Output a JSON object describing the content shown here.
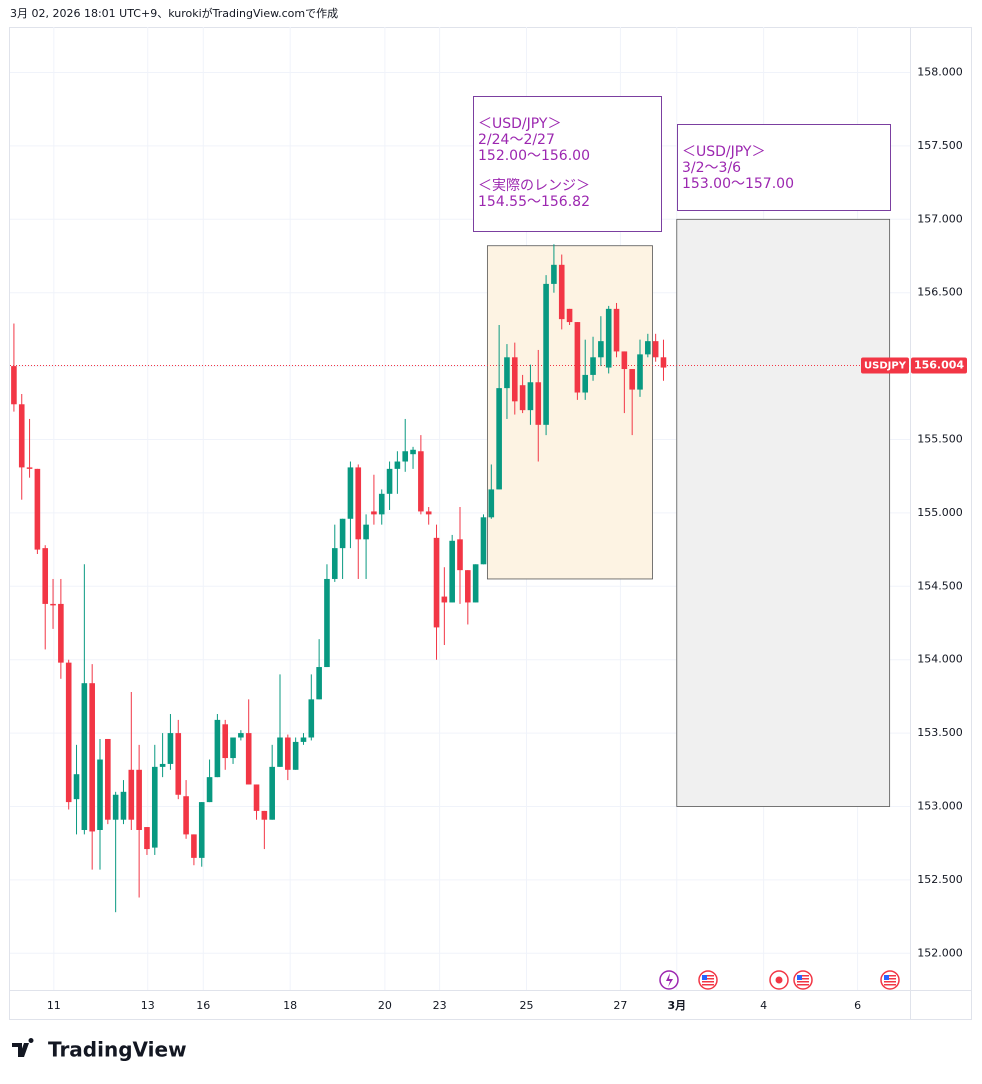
{
  "header": "3月 02, 2026 18:01 UTC+9、kurokiがTradingView.comで作成",
  "logo": "TradingView",
  "chart_data": {
    "type": "candlestick",
    "x": [
      0,
      1,
      2,
      3,
      4,
      5,
      6,
      7,
      8,
      9,
      10,
      11,
      12,
      13,
      14,
      15,
      16,
      17,
      18,
      19,
      20,
      21,
      22,
      23,
      24,
      25,
      26,
      27,
      28,
      29,
      30,
      31,
      32,
      33,
      34,
      35,
      36,
      37,
      38,
      39,
      40,
      41,
      42,
      43,
      44,
      45,
      46,
      47,
      48,
      49,
      50,
      51,
      52,
      53,
      54,
      55,
      56,
      57,
      58,
      59,
      60,
      61,
      62,
      63,
      64,
      65,
      66,
      67,
      68,
      69,
      70,
      71,
      72,
      73,
      74,
      75,
      76,
      77,
      78,
      79,
      80,
      81,
      82,
      83
    ],
    "open": [
      156.0,
      155.74,
      155.31,
      155.3,
      154.76,
      154.38,
      154.38,
      153.98,
      153.05,
      152.84,
      153.84,
      152.84,
      153.46,
      152.91,
      152.91,
      153.25,
      153.25,
      152.86,
      152.72,
      153.27,
      153.29,
      153.5,
      153.07,
      152.81,
      152.65,
      153.03,
      153.2,
      153.56,
      153.33,
      153.47,
      153.5,
      153.15,
      152.97,
      152.91,
      153.27,
      153.47,
      153.25,
      153.44,
      153.47,
      153.73,
      153.95,
      154.55,
      154.76,
      154.96,
      155.31,
      154.82,
      155.01,
      154.99,
      155.13,
      155.3,
      155.35,
      155.4,
      155.42,
      155.01,
      154.83,
      154.43,
      154.39,
      154.82,
      154.61,
      154.39,
      154.65,
      154.97,
      155.16,
      155.85,
      156.06,
      155.87,
      155.7,
      155.89,
      155.6,
      156.56,
      156.69,
      156.39,
      156.3,
      155.82,
      155.94,
      156.06,
      155.99,
      156.39,
      156.1,
      155.98,
      155.84,
      156.08,
      156.17,
      156.06
    ],
    "high": [
      156.29,
      155.81,
      155.64,
      155.3,
      154.78,
      154.55,
      154.55,
      154.0,
      153.42,
      154.65,
      153.97,
      153.46,
      153.46,
      153.1,
      153.18,
      153.78,
      153.42,
      152.86,
      153.42,
      153.5,
      153.63,
      153.59,
      153.18,
      152.81,
      153.03,
      153.32,
      153.63,
      153.59,
      153.47,
      153.52,
      153.73,
      153.15,
      152.97,
      153.42,
      153.9,
      153.49,
      153.47,
      153.5,
      153.9,
      154.14,
      154.65,
      154.92,
      154.96,
      155.35,
      155.33,
      154.99,
      155.26,
      155.16,
      155.35,
      155.42,
      155.64,
      155.45,
      155.53,
      155.04,
      154.92,
      154.63,
      154.85,
      155.04,
      154.61,
      154.65,
      154.99,
      155.33,
      156.28,
      156.15,
      156.16,
      155.94,
      156.01,
      156.11,
      156.62,
      156.83,
      156.76,
      156.39,
      156.3,
      156.18,
      156.2,
      156.34,
      156.41,
      156.43,
      156.1,
      155.98,
      156.18,
      156.22,
      156.22,
      156.18
    ],
    "low": [
      155.69,
      155.09,
      155.24,
      154.72,
      154.07,
      154.21,
      153.87,
      152.98,
      152.81,
      152.81,
      152.57,
      152.57,
      152.88,
      152.28,
      152.88,
      152.84,
      152.38,
      152.67,
      152.67,
      153.2,
      153.25,
      153.05,
      152.78,
      152.6,
      152.59,
      153.03,
      153.2,
      153.25,
      153.29,
      153.45,
      153.15,
      152.91,
      152.71,
      152.91,
      153.27,
      153.18,
      153.25,
      153.42,
      153.45,
      153.73,
      153.95,
      154.53,
      154.55,
      154.76,
      154.55,
      154.55,
      154.92,
      154.92,
      155.02,
      155.13,
      155.28,
      155.3,
      154.99,
      154.92,
      154.0,
      154.1,
      154.39,
      154.38,
      154.24,
      154.39,
      154.65,
      154.96,
      155.16,
      155.64,
      155.67,
      155.68,
      155.6,
      155.35,
      155.53,
      156.5,
      156.25,
      156.28,
      155.77,
      155.77,
      155.9,
      156.0,
      155.95,
      156.06,
      155.68,
      155.53,
      155.79,
      156.06,
      156.03,
      155.9
    ],
    "close": [
      155.74,
      155.31,
      155.3,
      154.75,
      154.38,
      154.37,
      153.98,
      153.03,
      153.22,
      153.84,
      152.83,
      153.32,
      152.91,
      153.08,
      153.1,
      152.91,
      152.84,
      152.71,
      153.27,
      153.29,
      153.5,
      153.08,
      152.81,
      152.65,
      153.03,
      153.2,
      153.59,
      153.33,
      153.47,
      153.5,
      153.15,
      152.97,
      152.91,
      153.27,
      153.47,
      153.25,
      153.44,
      153.47,
      153.73,
      153.95,
      154.55,
      154.76,
      154.96,
      155.31,
      154.82,
      154.92,
      154.99,
      155.13,
      155.3,
      155.35,
      155.42,
      155.43,
      155.01,
      154.99,
      154.22,
      154.39,
      154.81,
      154.61,
      154.39,
      154.65,
      154.97,
      155.16,
      155.85,
      156.06,
      155.76,
      155.7,
      155.89,
      155.6,
      156.56,
      156.69,
      156.32,
      156.3,
      155.82,
      155.94,
      156.06,
      156.17,
      156.39,
      156.1,
      155.98,
      155.84,
      156.08,
      156.17,
      156.06,
      155.99
    ],
    "up_color": "#089981",
    "down_color": "#f23645",
    "xlim": [
      -0.5,
      114.5
    ],
    "xticks": [
      {
        "value": 5.1,
        "label": "11"
      },
      {
        "value": 17.1,
        "label": "13"
      },
      {
        "value": 24.2,
        "label": "16"
      },
      {
        "value": 35.3,
        "label": "18"
      },
      {
        "value": 47.4,
        "label": "20"
      },
      {
        "value": 54.4,
        "label": "23"
      },
      {
        "value": 65.5,
        "label": "25"
      },
      {
        "value": 77.5,
        "label": "27"
      },
      {
        "value": 84.7,
        "label": "3月"
      },
      {
        "value": 95.8,
        "label": "4"
      },
      {
        "value": 107.8,
        "label": "6"
      }
    ],
    "ylim": [
      151.75,
      158.31
    ],
    "yticks": [
      {
        "value": 152,
        "label": "152.000"
      },
      {
        "value": 152.5,
        "label": "152.500"
      },
      {
        "value": 153,
        "label": "153.000"
      },
      {
        "value": 153.5,
        "label": "153.500"
      },
      {
        "value": 154,
        "label": "154.000"
      },
      {
        "value": 154.5,
        "label": "154.500"
      },
      {
        "value": 155,
        "label": "155.000"
      },
      {
        "value": 155.5,
        "label": "155.500"
      },
      {
        "value": 156,
        "label": "156.000"
      },
      {
        "value": 156.5,
        "label": "156.500"
      },
      {
        "value": 157,
        "label": "157.000"
      },
      {
        "value": 157.5,
        "label": "157.500"
      },
      {
        "value": 158,
        "label": "158.000"
      }
    ],
    "grid": true,
    "price_line": {
      "symbol": "USDJPY",
      "value": 156.004,
      "label": "156.004",
      "color": "#f23645"
    },
    "boxes": [
      {
        "x0": 60.5,
        "x1": 81.6,
        "top": 156.82,
        "bottom": 154.55,
        "fill": "#fdf3e3",
        "stroke": "#555555"
      },
      {
        "x0": 84.7,
        "x1": 111.9,
        "top": 157.0,
        "bottom": 153.0,
        "fill": "#f0f0f0",
        "stroke": "#555555"
      }
    ],
    "annotations": [
      {
        "lines": [
          "＜USD/JPY＞",
          "2/24〜2/27",
          "152.00〜156.00"
        ],
        "lines2": [
          "＜実際のレンジ＞",
          "154.55〜156.82"
        ]
      },
      {
        "lines": [
          "＜USD/JPY＞",
          "3/2〜3/6",
          "153.00〜157.00"
        ]
      }
    ]
  }
}
